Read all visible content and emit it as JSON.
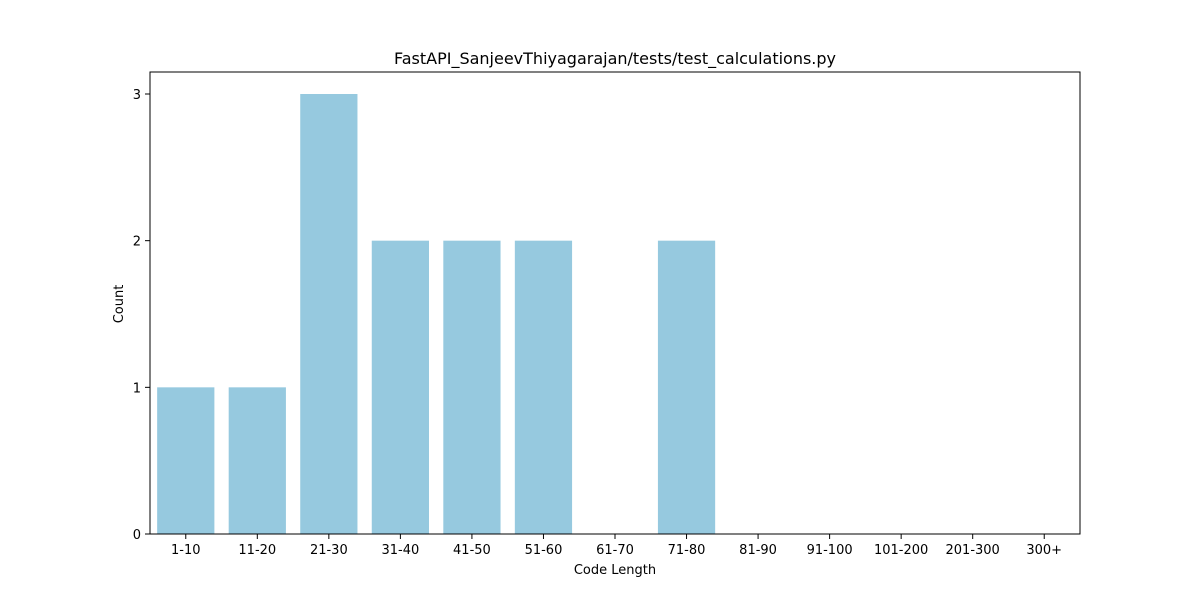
{
  "chart_data": {
    "type": "bar",
    "title": "FastAPI_SanjeevThiyagarajan/tests/test_calculations.py",
    "xlabel": "Code Length",
    "ylabel": "Count",
    "categories": [
      "1-10",
      "11-20",
      "21-30",
      "31-40",
      "41-50",
      "51-60",
      "61-70",
      "71-80",
      "81-90",
      "91-100",
      "101-200",
      "201-300",
      "300+"
    ],
    "values": [
      1,
      1,
      3,
      2,
      2,
      2,
      0,
      2,
      0,
      0,
      0,
      0,
      0
    ],
    "ylim": [
      0,
      3.15
    ],
    "yticks": [
      0,
      1,
      2,
      3
    ],
    "grid": false,
    "colors": {
      "bar": "#96c9df",
      "axis": "#000000"
    }
  }
}
